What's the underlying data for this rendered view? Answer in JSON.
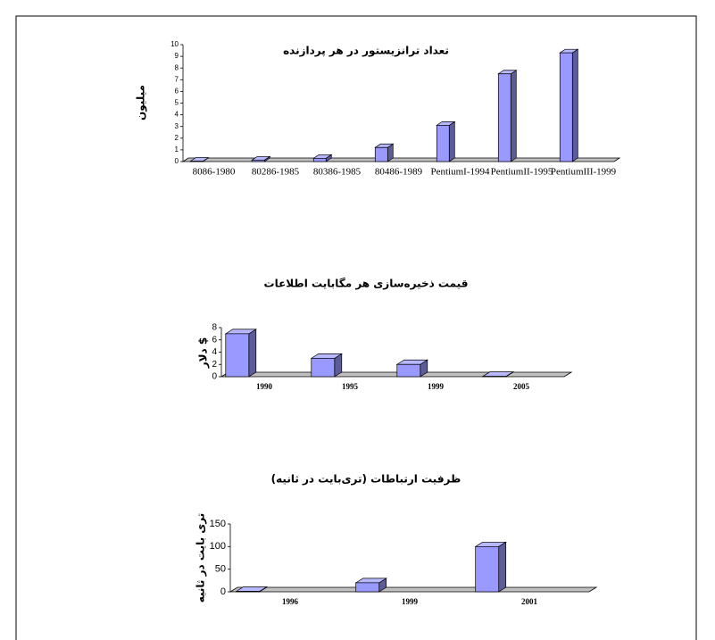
{
  "chart_data": [
    {
      "type": "bar",
      "title": "تعداد ترانزیستور در هر پردازنده",
      "y_label": "میلیون",
      "categories": [
        "8086-1980",
        "80286-1985",
        "80386-1985",
        "80486-1989",
        "PentiumI-1994",
        "PentiumII-1995",
        "PentiumIII-1999"
      ],
      "values": [
        0.03,
        0.13,
        0.28,
        1.2,
        3.1,
        7.5,
        9.3
      ],
      "color": "#9999ff",
      "ylim": [
        0,
        10
      ],
      "yticks": [
        0,
        1,
        2,
        3,
        4,
        5,
        6,
        7,
        8,
        9,
        10
      ]
    },
    {
      "type": "bar",
      "title": "قیمت ذخیره‌سازی هر مگابایت اطلاعات",
      "y_label": "دلار $",
      "categories": [
        "1990",
        "1995",
        "1999",
        "2005"
      ],
      "values": [
        7,
        3,
        2,
        0.05
      ],
      "color": "#9999ff",
      "ylim": [
        0,
        8
      ],
      "yticks": [
        0,
        2,
        4,
        6,
        8
      ]
    },
    {
      "type": "bar",
      "title": "ظرفیت ارتباطات (تری‌بایت در ثانیه)",
      "y_label": "تری بایت در ثانیه",
      "categories": [
        "1996",
        "1999",
        "2001"
      ],
      "values": [
        1,
        20,
        100
      ],
      "color": "#9999ff",
      "ylim": [
        0,
        150
      ],
      "yticks": [
        0,
        50,
        100,
        150
      ]
    }
  ]
}
